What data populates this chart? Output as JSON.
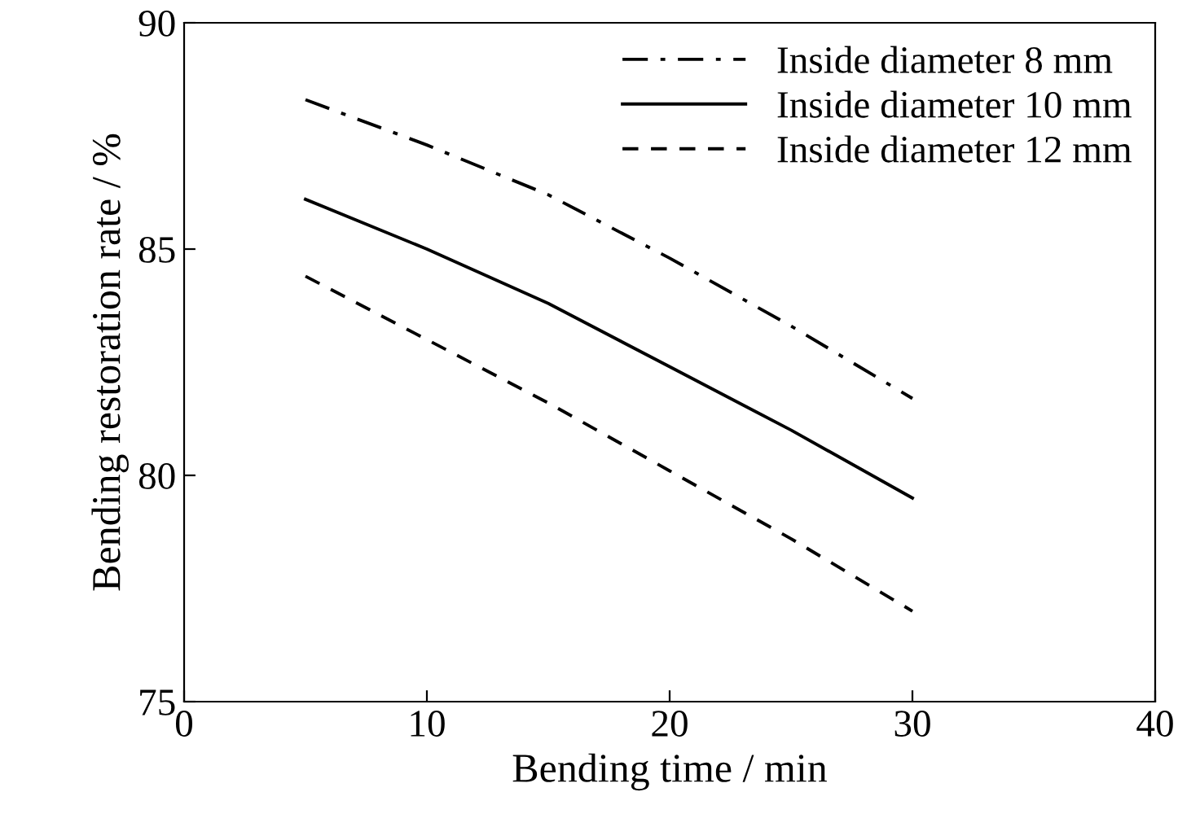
{
  "chart_data": {
    "type": "line",
    "xlabel": "Bending time / min",
    "ylabel": "Bending restoration rate / %",
    "x": [
      5,
      10,
      15,
      20,
      25,
      30
    ],
    "series": [
      {
        "name": "Inside diameter 8 mm",
        "color": "#000000",
        "line_style": "dashdot",
        "values": [
          88.3,
          87.3,
          86.2,
          84.8,
          83.3,
          81.7
        ]
      },
      {
        "name": "Inside diameter 10 mm",
        "color": "#000000",
        "line_style": "solid",
        "values": [
          86.1,
          85.0,
          83.8,
          82.4,
          81.0,
          79.5
        ]
      },
      {
        "name": "Inside diameter 12 mm",
        "color": "#000000",
        "line_style": "dashed",
        "values": [
          84.4,
          83.0,
          81.6,
          80.1,
          78.6,
          77.0
        ]
      }
    ],
    "xlim": [
      0,
      40
    ],
    "ylim": [
      75,
      90
    ],
    "xticks": [
      0,
      10,
      20,
      30,
      40
    ],
    "yticks": [
      75,
      80,
      85,
      90
    ],
    "grid": false,
    "legend": "top right",
    "marker": "none"
  }
}
